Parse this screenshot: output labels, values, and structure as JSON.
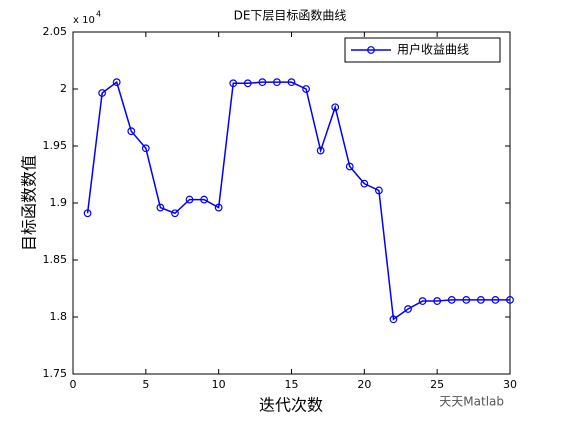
{
  "chart_data": {
    "type": "line",
    "title": "DE下层目标函数曲线",
    "x_label": "迭代次数",
    "y_label": "目标函数数值",
    "y_multiplier": "x 10",
    "y_exponent": "4",
    "x": [
      1,
      2,
      3,
      4,
      5,
      6,
      7,
      8,
      9,
      10,
      11,
      12,
      13,
      14,
      15,
      16,
      17,
      18,
      19,
      20,
      21,
      22,
      23,
      24,
      25,
      26,
      27,
      28,
      29,
      30
    ],
    "series": [
      {
        "name": "用户收益曲线",
        "color": "#0000ff",
        "values": [
          1.891,
          1.9965,
          2.006,
          1.963,
          1.948,
          1.896,
          1.891,
          1.903,
          1.903,
          1.896,
          2.005,
          2.005,
          2.006,
          2.006,
          2.006,
          2.0,
          1.946,
          1.984,
          1.932,
          1.917,
          1.911,
          1.798,
          1.807,
          1.814,
          1.814,
          1.815,
          1.815,
          1.815,
          1.815,
          1.815
        ]
      }
    ],
    "xlim": [
      0,
      30
    ],
    "xticks": [
      0,
      5,
      10,
      15,
      20,
      25,
      30
    ],
    "ylim": [
      1.75,
      2.05
    ],
    "yticks": [
      1.75,
      1.8,
      1.85,
      1.9,
      1.95,
      2,
      2.05
    ],
    "grid": false,
    "legend_position": "upper right"
  },
  "watermark": "天天Matlab"
}
